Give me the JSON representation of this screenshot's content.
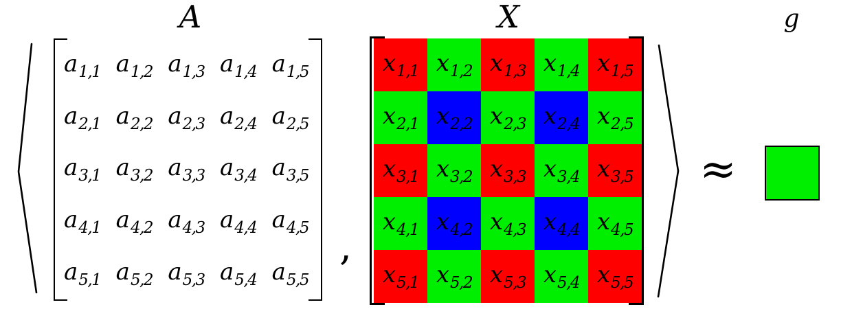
{
  "expression": {
    "comma": ",",
    "approx": "≈"
  },
  "matrix_a": {
    "label": "A",
    "entry_base": "a",
    "entries": [
      [
        "1,1",
        "1,2",
        "1,3",
        "1,4",
        "1,5"
      ],
      [
        "2,1",
        "2,2",
        "2,3",
        "2,4",
        "2,5"
      ],
      [
        "3,1",
        "3,2",
        "3,3",
        "3,4",
        "3,5"
      ],
      [
        "4,1",
        "4,2",
        "4,3",
        "4,4",
        "4,5"
      ],
      [
        "5,1",
        "5,2",
        "5,3",
        "5,4",
        "5,5"
      ]
    ]
  },
  "matrix_x": {
    "label": "X",
    "entry_base": "x",
    "entries": [
      [
        "1,1",
        "1,2",
        "1,3",
        "1,4",
        "1,5"
      ],
      [
        "2,1",
        "2,2",
        "2,3",
        "2,4",
        "2,5"
      ],
      [
        "3,1",
        "3,2",
        "3,3",
        "3,4",
        "3,5"
      ],
      [
        "4,1",
        "4,2",
        "4,3",
        "4,4",
        "4,5"
      ],
      [
        "5,1",
        "5,2",
        "5,3",
        "5,4",
        "5,5"
      ]
    ],
    "colors": [
      [
        "red",
        "green",
        "red",
        "green",
        "red"
      ],
      [
        "green",
        "blue",
        "green",
        "blue",
        "green"
      ],
      [
        "red",
        "green",
        "red",
        "green",
        "red"
      ],
      [
        "green",
        "blue",
        "green",
        "blue",
        "green"
      ],
      [
        "red",
        "green",
        "red",
        "green",
        "red"
      ]
    ],
    "palette": {
      "red": "#ff0000",
      "green": "#00ee00",
      "blue": "#0000ff"
    }
  },
  "result": {
    "label": "g",
    "color": "#00ee00"
  }
}
